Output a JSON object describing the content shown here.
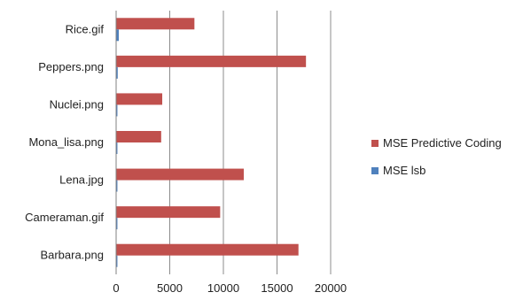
{
  "chart_data": {
    "type": "bar",
    "orientation": "horizontal",
    "categories": [
      "Barbara.png",
      "Cameraman.gif",
      "Lena.jpg",
      "Mona_lisa.png",
      "Nuclei.png",
      "Peppers.png",
      "Rice.gif"
    ],
    "series": [
      {
        "name": "MSE Predictive Coding",
        "color": "#c0504d",
        "values": [
          17000,
          9700,
          11900,
          4200,
          4300,
          17700,
          7300
        ]
      },
      {
        "name": "MSE lsb",
        "color": "#4f81bd",
        "values": [
          120,
          120,
          120,
          120,
          120,
          150,
          250
        ]
      }
    ],
    "xlim": [
      0,
      20000
    ],
    "xticks": [
      0,
      5000,
      10000,
      15000,
      20000
    ],
    "tick_labels": [
      "0",
      "5000",
      "10000",
      "15000",
      "20000"
    ],
    "grid": "vertical",
    "legend_position": "right",
    "title": "",
    "xlabel": "",
    "ylabel": ""
  }
}
